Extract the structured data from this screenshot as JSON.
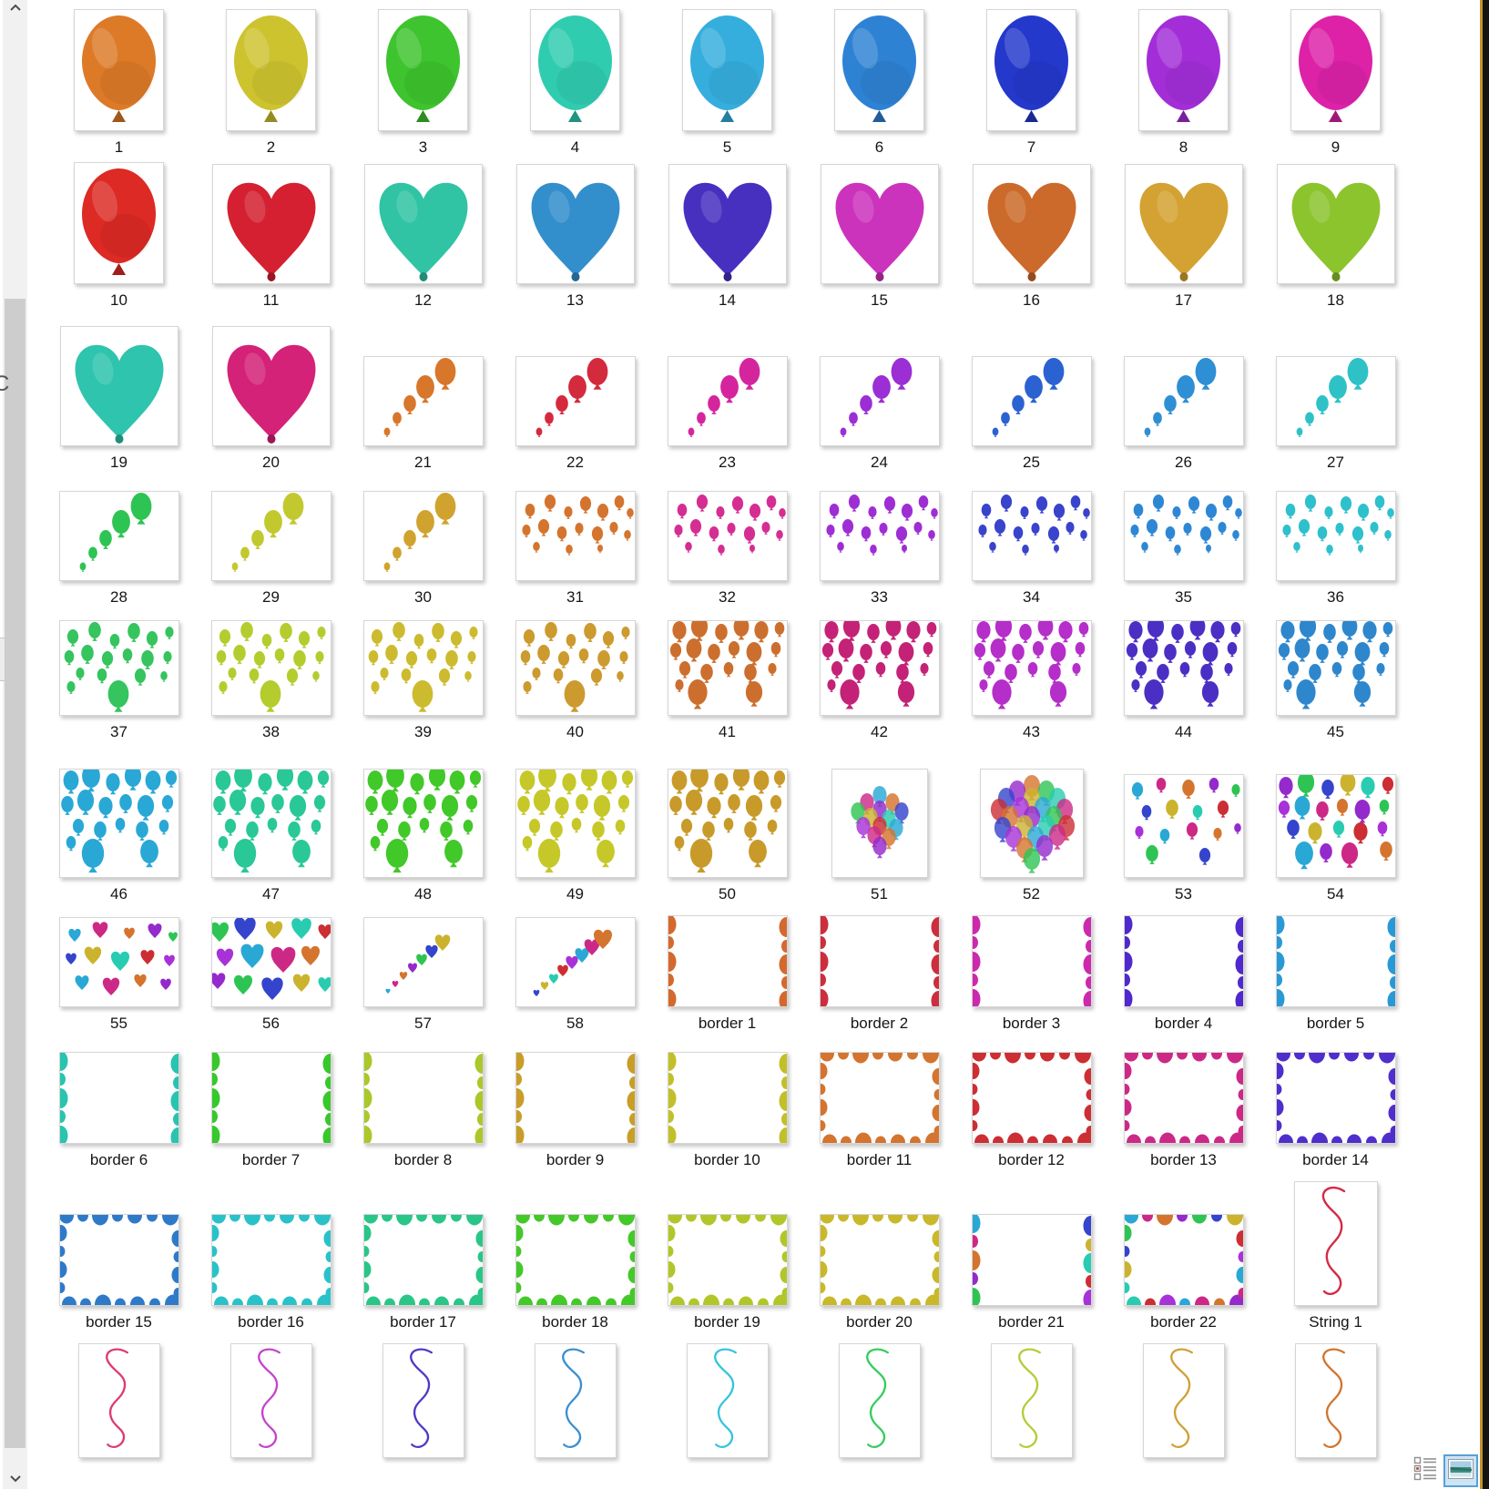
{
  "page": {
    "background": "#ffffff"
  },
  "palette": [
    "#29a8d6",
    "#cc2987",
    "#d4742e",
    "#9429cc",
    "#2ec453",
    "#3444cc",
    "#ccb32e",
    "#29ccb0",
    "#cc2e33",
    "#a832d8"
  ],
  "items": [
    {
      "label": "1",
      "type": "balloon",
      "color": "#dd7a28"
    },
    {
      "label": "2",
      "type": "balloon",
      "color": "#cdc32f"
    },
    {
      "label": "3",
      "type": "balloon",
      "color": "#3ec42e"
    },
    {
      "label": "4",
      "type": "balloon",
      "color": "#30ccb0"
    },
    {
      "label": "5",
      "type": "balloon",
      "color": "#35aede"
    },
    {
      "label": "6",
      "type": "balloon",
      "color": "#2e82d4"
    },
    {
      "label": "7",
      "type": "balloon",
      "color": "#2438cc"
    },
    {
      "label": "8",
      "type": "balloon",
      "color": "#a32ed8"
    },
    {
      "label": "9",
      "type": "balloon",
      "color": "#dd22a8"
    },
    {
      "label": "10",
      "type": "balloon",
      "color": "#dd2a24"
    },
    {
      "label": "11",
      "type": "heart",
      "color": "#d42031"
    },
    {
      "label": "12",
      "type": "heart",
      "color": "#30c4a4"
    },
    {
      "label": "13",
      "type": "heart",
      "color": "#338fcc"
    },
    {
      "label": "14",
      "type": "heart",
      "color": "#4730c0"
    },
    {
      "label": "15",
      "type": "heart",
      "color": "#cc33bd"
    },
    {
      "label": "16",
      "type": "heart",
      "color": "#cc6a2b"
    },
    {
      "label": "17",
      "type": "heart",
      "color": "#d4a232"
    },
    {
      "label": "18",
      "type": "heart",
      "color": "#8cc42e"
    },
    {
      "label": "19",
      "type": "heart",
      "color": "#2ec4ad"
    },
    {
      "label": "20",
      "type": "heart",
      "color": "#d42278"
    },
    {
      "label": "21",
      "type": "trail",
      "color": "#d8762b"
    },
    {
      "label": "22",
      "type": "trail",
      "color": "#d42a3d"
    },
    {
      "label": "23",
      "type": "trail",
      "color": "#d4259e"
    },
    {
      "label": "24",
      "type": "trail",
      "color": "#9b2ed4"
    },
    {
      "label": "25",
      "type": "trail",
      "color": "#2b62d1"
    },
    {
      "label": "26",
      "type": "trail",
      "color": "#2e8fd4"
    },
    {
      "label": "27",
      "type": "trail",
      "color": "#2ec2c6"
    },
    {
      "label": "28",
      "type": "trail",
      "color": "#2ec453"
    },
    {
      "label": "29",
      "type": "trail",
      "color": "#c2c92e"
    },
    {
      "label": "30",
      "type": "trail",
      "color": "#cfa32e"
    },
    {
      "label": "31",
      "type": "scatter",
      "color": "#d4742e"
    },
    {
      "label": "32",
      "type": "scatter",
      "color": "#d42e93"
    },
    {
      "label": "33",
      "type": "scatter",
      "color": "#9e2ed4"
    },
    {
      "label": "34",
      "type": "scatter",
      "color": "#3a43cc"
    },
    {
      "label": "35",
      "type": "scatter",
      "color": "#2e87d4"
    },
    {
      "label": "36",
      "type": "scatter",
      "color": "#2ec0cc"
    },
    {
      "label": "37",
      "type": "scatter-md",
      "color": "#35c45e"
    },
    {
      "label": "38",
      "type": "scatter-md",
      "color": "#b5cc2e"
    },
    {
      "label": "39",
      "type": "scatter-md",
      "color": "#ccbb2e"
    },
    {
      "label": "40",
      "type": "scatter-md",
      "color": "#cc9a2e"
    },
    {
      "label": "41",
      "type": "scatter-lg",
      "color": "#cc6f2e"
    },
    {
      "label": "42",
      "type": "scatter-lg",
      "color": "#c42277"
    },
    {
      "label": "43",
      "type": "scatter-lg",
      "color": "#b52ec9"
    },
    {
      "label": "44",
      "type": "scatter-lg",
      "color": "#4b2fc4"
    },
    {
      "label": "45",
      "type": "scatter-lg",
      "color": "#2e87cc"
    },
    {
      "label": "46",
      "type": "scatter-xl",
      "color": "#29a8d6"
    },
    {
      "label": "47",
      "type": "scatter-xl",
      "color": "#29c896"
    },
    {
      "label": "48",
      "type": "scatter-xl",
      "color": "#41c829"
    },
    {
      "label": "49",
      "type": "scatter-xl",
      "color": "#c6c829"
    },
    {
      "label": "50",
      "type": "scatter-xl",
      "color": "#c89a29"
    },
    {
      "label": "51",
      "type": "bunch-sm",
      "color": null
    },
    {
      "label": "52",
      "type": "bunch-lg",
      "color": null
    },
    {
      "label": "53",
      "type": "multi-scatter",
      "color": null
    },
    {
      "label": "54",
      "type": "multi-scatter-dense",
      "color": null
    },
    {
      "label": "55",
      "type": "hearts-scatter",
      "color": null
    },
    {
      "label": "56",
      "type": "hearts-dense",
      "color": null
    },
    {
      "label": "57",
      "type": "heart-trail-sm",
      "color": null
    },
    {
      "label": "58",
      "type": "heart-trail-lg",
      "color": null
    },
    {
      "label": "border 1",
      "type": "border-sides",
      "color": "#d4692e"
    },
    {
      "label": "border 2",
      "type": "border-sides",
      "color": "#cc2e3d"
    },
    {
      "label": "border 3",
      "type": "border-sides",
      "color": "#cc29ad"
    },
    {
      "label": "border 4",
      "type": "border-sides",
      "color": "#4f29cc"
    },
    {
      "label": "border 5",
      "type": "border-sides",
      "color": "#2999d6"
    },
    {
      "label": "border 6",
      "type": "border-sides",
      "color": "#29c4b0"
    },
    {
      "label": "border 7",
      "type": "border-sides",
      "color": "#37c829"
    },
    {
      "label": "border 8",
      "type": "border-sides",
      "color": "#aac829"
    },
    {
      "label": "border 9",
      "type": "border-sides",
      "color": "#c89e29"
    },
    {
      "label": "border 10",
      "type": "border-sides",
      "color": "#c2c029"
    },
    {
      "label": "border 11",
      "type": "border-frame",
      "color": "#d4742e"
    },
    {
      "label": "border 12",
      "type": "border-frame",
      "color": "#cc2e33"
    },
    {
      "label": "border 13",
      "type": "border-frame",
      "color": "#cc2987"
    },
    {
      "label": "border 14",
      "type": "border-frame",
      "color": "#4f2ecc"
    },
    {
      "label": "border 15",
      "type": "border-frame",
      "color": "#2e7ac9"
    },
    {
      "label": "border 16",
      "type": "border-frame",
      "color": "#29c2c9"
    },
    {
      "label": "border 17",
      "type": "border-frame",
      "color": "#29c687"
    },
    {
      "label": "border 18",
      "type": "border-frame",
      "color": "#45c829"
    },
    {
      "label": "border 19",
      "type": "border-frame",
      "color": "#b2c629"
    },
    {
      "label": "border 20",
      "type": "border-frame",
      "color": "#c9b829"
    },
    {
      "label": "border 21",
      "type": "border-sides-multi",
      "color": null
    },
    {
      "label": "border 22",
      "type": "border-frame-multi",
      "color": null
    },
    {
      "label": "String 1",
      "type": "string",
      "color": "#d42a47"
    },
    {
      "label": "",
      "type": "string-sm",
      "color": "#dd3a72"
    },
    {
      "label": "",
      "type": "string-sm",
      "color": "#c444cc"
    },
    {
      "label": "",
      "type": "string-sm",
      "color": "#4b3ac6"
    },
    {
      "label": "",
      "type": "string-sm",
      "color": "#3a8fd1"
    },
    {
      "label": "",
      "type": "string-sm",
      "color": "#35c4dd"
    },
    {
      "label": "",
      "type": "string-sm",
      "color": "#35cc5e"
    },
    {
      "label": "",
      "type": "string-sm",
      "color": "#b5cc35"
    },
    {
      "label": "",
      "type": "string-sm",
      "color": "#d1a035"
    },
    {
      "label": "",
      "type": "string-sm",
      "color": "#d1742e"
    }
  ],
  "scrollbar": {
    "up_icon": "chevron-up-icon",
    "down_icon": "chevron-down-icon",
    "thumb_color": "#cdcdcd",
    "track_color": "#f1f1f1"
  },
  "status_bar": {
    "icons": [
      {
        "name": "details-view-icon",
        "selected": false
      },
      {
        "name": "thumbnails-view-icon",
        "selected": true
      }
    ],
    "selected_highlight": "#cbe4f6",
    "selected_border": "#5a9fd4"
  },
  "edge": {
    "stray_text": "C",
    "right_strip_color": "#161410",
    "right_strip_line": "#c1952e"
  }
}
